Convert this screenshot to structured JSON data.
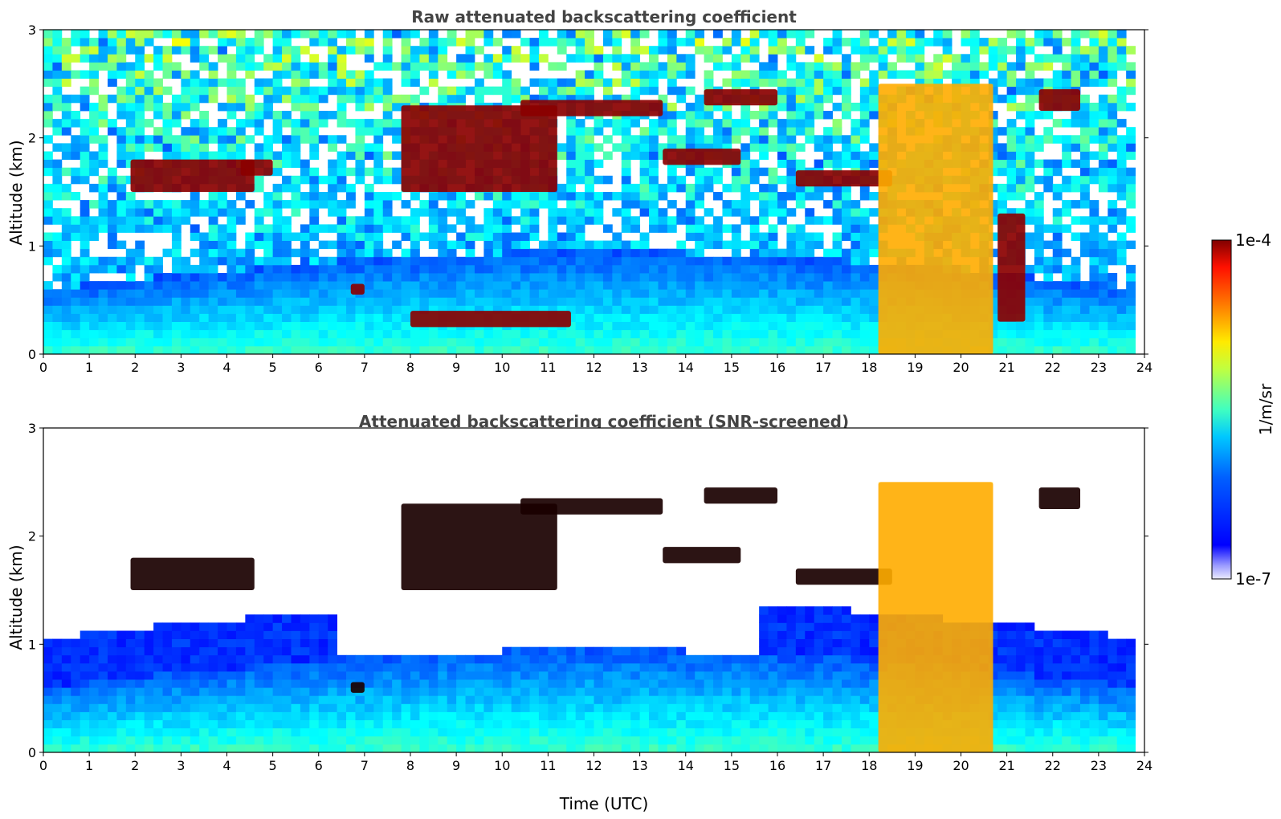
{
  "figure": {
    "xlabel": "Time (UTC)",
    "colorbar": {
      "label": "1/m/sr",
      "max_label": "1e-4",
      "min_label": "1e-7",
      "scale": "log",
      "colormap": "jet",
      "min": 1e-07,
      "max": 0.0001
    }
  },
  "chart_data": [
    {
      "type": "heatmap",
      "title": "Raw attenuated backscattering coefficient",
      "xlabel": "",
      "ylabel": "Altitude (km)",
      "xlim": [
        0,
        24
      ],
      "ylim": [
        0,
        3
      ],
      "x_ticks": [
        0,
        1,
        2,
        3,
        4,
        5,
        6,
        7,
        8,
        9,
        10,
        11,
        12,
        13,
        14,
        15,
        16,
        17,
        18,
        19,
        20,
        21,
        22,
        23,
        24
      ],
      "y_ticks": [
        0,
        1,
        2,
        3
      ],
      "screened": false,
      "features": [
        {
          "t0": 1.9,
          "t1": 4.6,
          "alt0": 1.5,
          "alt1": 1.8,
          "level": "high"
        },
        {
          "t0": 4.3,
          "t1": 5.0,
          "alt0": 1.65,
          "alt1": 1.8,
          "level": "high"
        },
        {
          "t0": 6.7,
          "t1": 7.0,
          "alt0": 0.55,
          "alt1": 0.65,
          "level": "high"
        },
        {
          "t0": 7.8,
          "t1": 11.2,
          "alt0": 1.5,
          "alt1": 2.3,
          "level": "high"
        },
        {
          "t0": 10.4,
          "t1": 13.5,
          "alt0": 2.2,
          "alt1": 2.35,
          "level": "high"
        },
        {
          "t0": 13.5,
          "t1": 15.2,
          "alt0": 1.75,
          "alt1": 1.9,
          "level": "high"
        },
        {
          "t0": 14.4,
          "t1": 16.0,
          "alt0": 2.3,
          "alt1": 2.45,
          "level": "high"
        },
        {
          "t0": 16.4,
          "t1": 18.5,
          "alt0": 1.55,
          "alt1": 1.7,
          "level": "high"
        },
        {
          "t0": 18.2,
          "t1": 20.7,
          "alt0": 0.0,
          "alt1": 2.5,
          "level": "mid"
        },
        {
          "t0": 20.8,
          "t1": 21.4,
          "alt0": 0.3,
          "alt1": 1.3,
          "level": "high"
        },
        {
          "t0": 21.7,
          "t1": 22.6,
          "alt0": 2.25,
          "alt1": 2.45,
          "level": "high"
        },
        {
          "t0": 8.0,
          "t1": 11.5,
          "alt0": 0.25,
          "alt1": 0.4,
          "level": "high"
        }
      ]
    },
    {
      "type": "heatmap",
      "title": "Attenuated backscattering coefficient (SNR-screened)",
      "xlabel": "Time (UTC)",
      "ylabel": "Altitude (km)",
      "xlim": [
        0,
        24
      ],
      "ylim": [
        0,
        3
      ],
      "x_ticks": [
        0,
        1,
        2,
        3,
        4,
        5,
        6,
        7,
        8,
        9,
        10,
        11,
        12,
        13,
        14,
        15,
        16,
        17,
        18,
        19,
        20,
        21,
        22,
        23,
        24
      ],
      "y_ticks": [
        0,
        1,
        2,
        3
      ],
      "screened": true,
      "features": [
        {
          "t0": 1.9,
          "t1": 4.6,
          "alt0": 1.5,
          "alt1": 1.8,
          "level": "high"
        },
        {
          "t0": 6.7,
          "t1": 7.0,
          "alt0": 0.55,
          "alt1": 0.65,
          "level": "high"
        },
        {
          "t0": 7.8,
          "t1": 11.2,
          "alt0": 1.5,
          "alt1": 2.3,
          "level": "high"
        },
        {
          "t0": 10.4,
          "t1": 13.5,
          "alt0": 2.2,
          "alt1": 2.35,
          "level": "high"
        },
        {
          "t0": 13.5,
          "t1": 15.2,
          "alt0": 1.75,
          "alt1": 1.9,
          "level": "high"
        },
        {
          "t0": 14.4,
          "t1": 16.0,
          "alt0": 2.3,
          "alt1": 2.45,
          "level": "high"
        },
        {
          "t0": 16.4,
          "t1": 18.5,
          "alt0": 1.55,
          "alt1": 1.7,
          "level": "high"
        },
        {
          "t0": 18.2,
          "t1": 20.7,
          "alt0": 0.0,
          "alt1": 2.5,
          "level": "mid"
        },
        {
          "t0": 21.7,
          "t1": 22.6,
          "alt0": 2.25,
          "alt1": 2.45,
          "level": "high"
        }
      ]
    }
  ]
}
